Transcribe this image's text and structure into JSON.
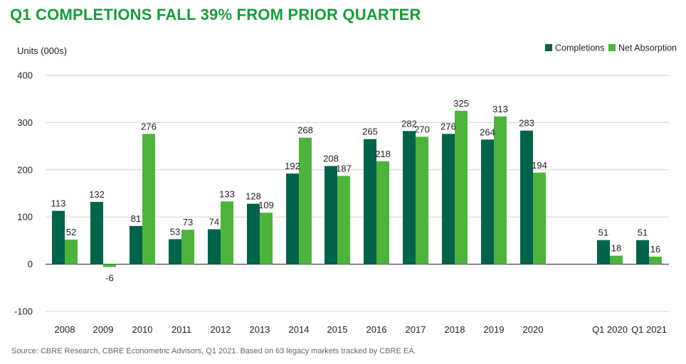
{
  "header": {
    "title": "Q1 COMPLETIONS FALL 39% FROM PRIOR QUARTER"
  },
  "footer": {
    "source": "Source: CBRE Research, CBRE Econometric Advisors, Q1 2021. Based on 63 legacy markets tracked by CBRE EA."
  },
  "colors": {
    "title": "#1a9a3c",
    "completions": "#00634a",
    "net_absorption": "#4db33d",
    "grid": "#d0d0d0"
  },
  "chart_data": {
    "type": "bar",
    "title": "Q1 COMPLETIONS FALL 39% FROM PRIOR QUARTER",
    "xlabel": "",
    "ylabel": "Units (000s)",
    "ylim": [
      -100,
      400
    ],
    "yticks": [
      -100,
      0,
      100,
      200,
      300,
      400
    ],
    "grid": true,
    "legend_position": "top-right",
    "categories": [
      "2008",
      "2009",
      "2010",
      "2011",
      "2012",
      "2013",
      "2014",
      "2015",
      "2016",
      "2017",
      "2018",
      "2019",
      "2020",
      "Q1 2020",
      "Q1 2021"
    ],
    "series": [
      {
        "name": "Completions",
        "color": "#00634a",
        "values": [
          113,
          132,
          81,
          53,
          74,
          128,
          192,
          208,
          265,
          282,
          276,
          264,
          283,
          51,
          51
        ],
        "labels": [
          "113",
          "132",
          "81",
          "53",
          "74",
          "128",
          "192",
          "208",
          "265",
          "282",
          "276",
          "264",
          "283",
          "51",
          "51"
        ]
      },
      {
        "name": "Net Absorption",
        "color": "#4db33d",
        "values": [
          52,
          -6,
          276,
          73,
          133,
          109,
          268,
          187,
          218,
          270,
          325,
          313,
          194,
          18,
          16
        ],
        "labels": [
          "52",
          "-6",
          "276",
          "73",
          "133",
          "109",
          "268",
          "187",
          "218",
          "270",
          "325",
          "313",
          "194",
          "18",
          "16"
        ]
      }
    ]
  }
}
